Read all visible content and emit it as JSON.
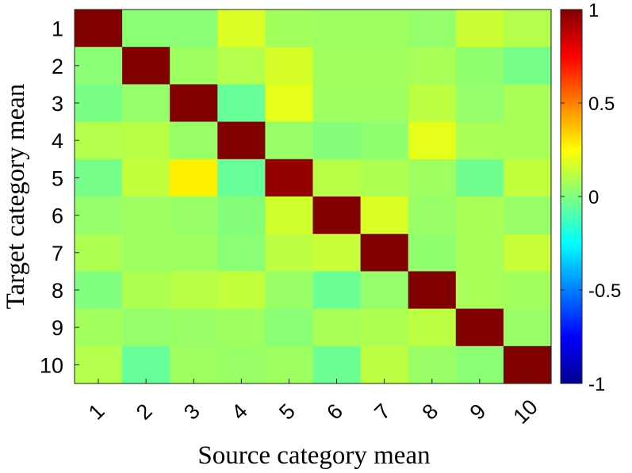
{
  "chart_data": {
    "type": "heatmap",
    "xlabel": "Source category mean",
    "ylabel": "Target category mean",
    "x_categories": [
      "1",
      "2",
      "3",
      "4",
      "5",
      "6",
      "7",
      "8",
      "9",
      "10"
    ],
    "y_categories": [
      "1",
      "2",
      "3",
      "4",
      "5",
      "6",
      "7",
      "8",
      "9",
      "10"
    ],
    "colormap": "jet",
    "clim": [
      -1,
      1
    ],
    "colorbar_ticks": [
      {
        "value": 1,
        "label": "1"
      },
      {
        "value": 0.5,
        "label": "0.5"
      },
      {
        "value": 0,
        "label": "0"
      },
      {
        "value": -0.5,
        "label": "-0.5"
      },
      {
        "value": -1,
        "label": "-1"
      }
    ],
    "values": [
      [
        1.0,
        0.02,
        0.02,
        0.18,
        0.07,
        0.06,
        0.06,
        0.04,
        0.15,
        0.1
      ],
      [
        0.02,
        1.0,
        0.06,
        0.1,
        0.17,
        0.07,
        0.07,
        0.08,
        0.03,
        -0.02
      ],
      [
        -0.01,
        0.04,
        1.0,
        -0.05,
        0.2,
        0.06,
        0.06,
        0.12,
        0.04,
        0.08
      ],
      [
        0.1,
        0.11,
        0.05,
        1.0,
        0.05,
        0.01,
        0.03,
        0.2,
        0.08,
        0.08
      ],
      [
        -0.02,
        0.13,
        0.28,
        -0.05,
        0.96,
        0.11,
        0.09,
        0.06,
        -0.03,
        0.13
      ],
      [
        0.04,
        0.06,
        0.05,
        0.01,
        0.16,
        1.0,
        0.18,
        0.05,
        0.08,
        0.05
      ],
      [
        0.09,
        0.06,
        0.06,
        0.02,
        0.12,
        0.14,
        1.0,
        0.03,
        0.08,
        0.14
      ],
      [
        0.0,
        0.09,
        0.11,
        0.13,
        0.05,
        -0.04,
        0.04,
        1.0,
        0.08,
        0.07
      ],
      [
        0.07,
        0.04,
        0.05,
        0.06,
        0.02,
        0.08,
        0.09,
        0.12,
        1.0,
        0.05
      ],
      [
        0.1,
        -0.05,
        0.06,
        0.05,
        0.06,
        -0.04,
        0.12,
        0.05,
        0.02,
        1.0
      ]
    ]
  }
}
